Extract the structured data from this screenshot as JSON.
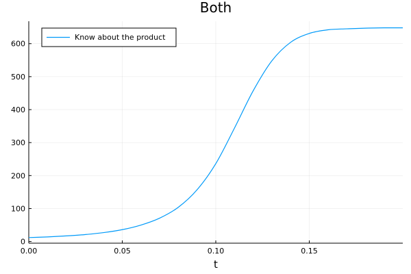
{
  "chart_data": {
    "type": "line",
    "title": "Both",
    "xlabel": "t",
    "ylabel": "",
    "xlim": [
      0.0,
      0.2
    ],
    "ylim": [
      -5,
      668
    ],
    "xticks": [
      0.0,
      0.05,
      0.1,
      0.15
    ],
    "xtick_labels": [
      "0.00",
      "0.05",
      "0.10",
      "0.15"
    ],
    "yticks": [
      0,
      100,
      200,
      300,
      400,
      500,
      600
    ],
    "ytick_labels": [
      "0",
      "100",
      "200",
      "300",
      "400",
      "500",
      "600"
    ],
    "grid": true,
    "legend_position": "top-left",
    "series": [
      {
        "name": "Know about the product",
        "color": "#009af9",
        "x": [
          0.0,
          0.01,
          0.02,
          0.03,
          0.04,
          0.05,
          0.06,
          0.07,
          0.08,
          0.09,
          0.1,
          0.11,
          0.12,
          0.13,
          0.14,
          0.15,
          0.16,
          0.17,
          0.18,
          0.19,
          0.2
        ],
        "y": [
          12,
          14,
          17,
          21,
          27,
          36,
          50,
          71,
          104,
          157,
          236,
          344,
          457,
          548,
          604,
          631,
          642,
          645,
          647,
          648,
          648
        ]
      }
    ]
  }
}
